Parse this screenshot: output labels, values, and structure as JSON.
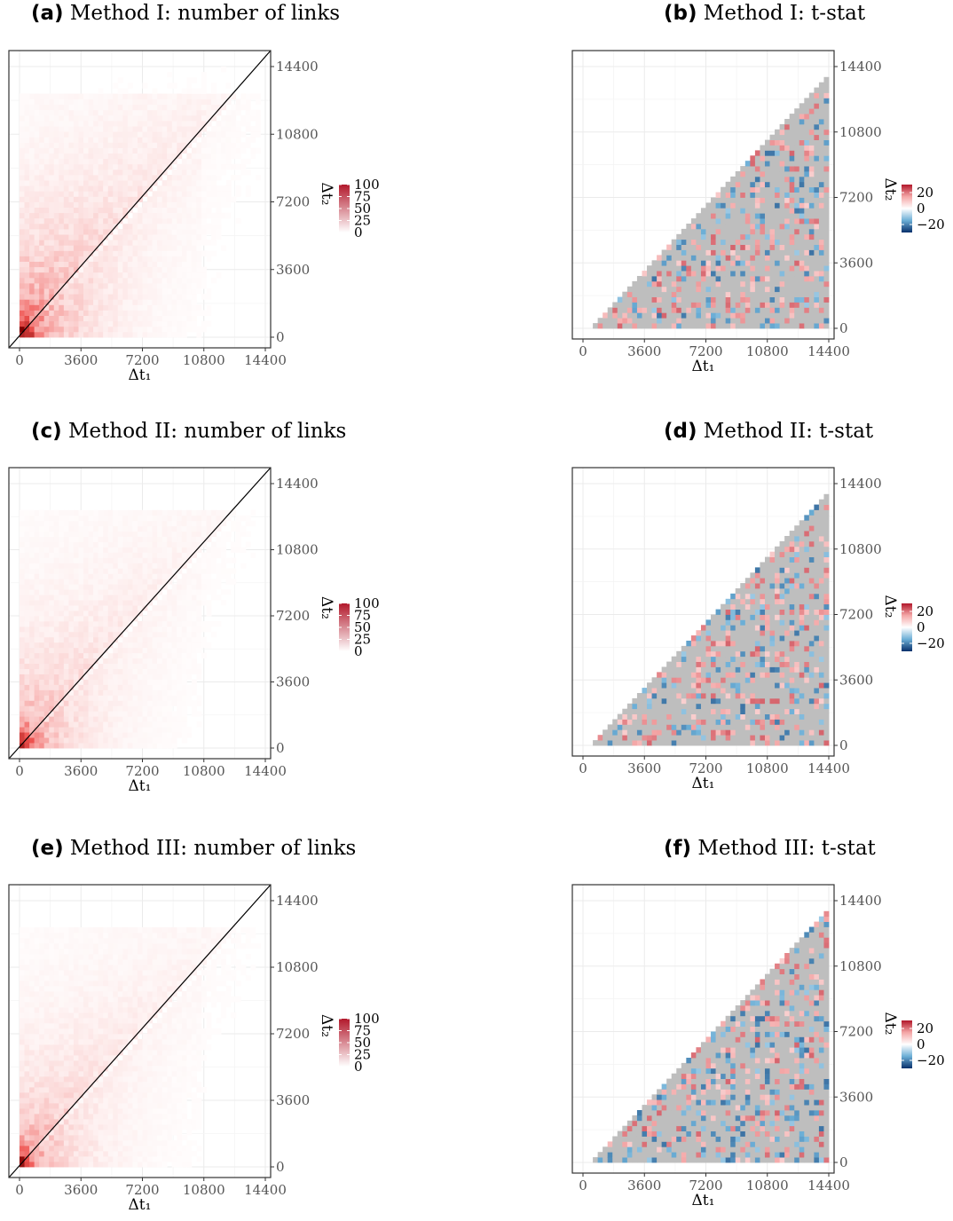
{
  "chart_data": [
    {
      "id": "a",
      "tag": "(a)",
      "title": "Method I: number of links",
      "type": "heatmap",
      "kind": "count",
      "xlabel": "Δt₁",
      "ylabel": "Δt₂",
      "xticks": [
        0,
        3600,
        7200,
        10800,
        14400
      ],
      "yticks": [
        0,
        3600,
        7200,
        10800,
        14400
      ],
      "xlim": [
        0,
        14400
      ],
      "ylim": [
        0,
        14400
      ],
      "grid": true,
      "diagonal_line": true,
      "legend": {
        "position": "right",
        "ticks": [
          0,
          25,
          50,
          75,
          100
        ],
        "range": [
          0,
          100
        ],
        "colors": [
          "#ffffff",
          "#b2182b"
        ]
      },
      "values_description_density": "links concentrated near origin along diagonal (max ~100 at bin 0,0)"
    },
    {
      "id": "b",
      "tag": "(b)",
      "title": "Method I: t-stat",
      "type": "heatmap",
      "kind": "tstat",
      "xlabel": "Δt₁",
      "ylabel": "Δt₂",
      "xticks": [
        0,
        3600,
        7200,
        10800,
        14400
      ],
      "yticks": [
        0,
        3600,
        7200,
        10800,
        14400
      ],
      "xlim": [
        0,
        14400
      ],
      "ylim": [
        0,
        14400
      ],
      "grid": true,
      "diagonal_line": false,
      "legend": {
        "position": "right",
        "ticks": [
          20,
          0,
          -20
        ],
        "range": [
          -30,
          30
        ],
        "colors": [
          "#08306b",
          "#6baed6",
          "#ffffff",
          "#f4a6a6",
          "#b2182b"
        ]
      },
      "na_color": "#bebebe"
    },
    {
      "id": "c",
      "tag": "(c)",
      "title": "Method II: number of links",
      "type": "heatmap",
      "kind": "count",
      "xlabel": "Δt₁",
      "ylabel": "Δt₂",
      "xticks": [
        0,
        3600,
        7200,
        10800,
        14400
      ],
      "yticks": [
        0,
        3600,
        7200,
        10800,
        14400
      ],
      "xlim": [
        0,
        14400
      ],
      "ylim": [
        0,
        14400
      ],
      "grid": true,
      "diagonal_line": true,
      "legend": {
        "position": "right",
        "ticks": [
          0,
          25,
          50,
          75,
          100
        ],
        "range": [
          0,
          100
        ],
        "colors": [
          "#ffffff",
          "#b2182b"
        ]
      }
    },
    {
      "id": "d",
      "tag": "(d)",
      "title": "Method II: t-stat",
      "type": "heatmap",
      "kind": "tstat",
      "xlabel": "Δt₁",
      "ylabel": "Δt₂",
      "xticks": [
        0,
        3600,
        7200,
        10800,
        14400
      ],
      "yticks": [
        0,
        3600,
        7200,
        10800,
        14400
      ],
      "xlim": [
        0,
        14400
      ],
      "ylim": [
        0,
        14400
      ],
      "grid": true,
      "diagonal_line": false,
      "legend": {
        "position": "right",
        "ticks": [
          20,
          0,
          -20
        ],
        "range": [
          -30,
          30
        ],
        "colors": [
          "#08306b",
          "#6baed6",
          "#ffffff",
          "#f4a6a6",
          "#b2182b"
        ]
      },
      "na_color": "#bebebe"
    },
    {
      "id": "e",
      "tag": "(e)",
      "title": "Method III: number of links",
      "type": "heatmap",
      "kind": "count",
      "xlabel": "Δt₁",
      "ylabel": "Δt₂",
      "xticks": [
        0,
        3600,
        7200,
        10800,
        14400
      ],
      "yticks": [
        0,
        3600,
        7200,
        10800,
        14400
      ],
      "xlim": [
        0,
        14400
      ],
      "ylim": [
        0,
        14400
      ],
      "grid": true,
      "diagonal_line": true,
      "legend": {
        "position": "right",
        "ticks": [
          0,
          25,
          50,
          75,
          100
        ],
        "range": [
          0,
          100
        ],
        "colors": [
          "#ffffff",
          "#b2182b"
        ]
      }
    },
    {
      "id": "f",
      "tag": "(f)",
      "title": "Method III: t-stat",
      "type": "heatmap",
      "kind": "tstat",
      "xlabel": "Δt₁",
      "ylabel": "Δt₂",
      "xticks": [
        0,
        3600,
        7200,
        10800,
        14400
      ],
      "yticks": [
        0,
        3600,
        7200,
        10800,
        14400
      ],
      "xlim": [
        0,
        14400
      ],
      "ylim": [
        0,
        14400
      ],
      "grid": true,
      "diagonal_line": false,
      "legend": {
        "position": "right",
        "ticks": [
          20,
          0,
          -20
        ],
        "range": [
          -30,
          30
        ],
        "colors": [
          "#08306b",
          "#6baed6",
          "#ffffff",
          "#f4a6a6",
          "#b2182b"
        ]
      },
      "na_color": "#bebebe"
    }
  ]
}
